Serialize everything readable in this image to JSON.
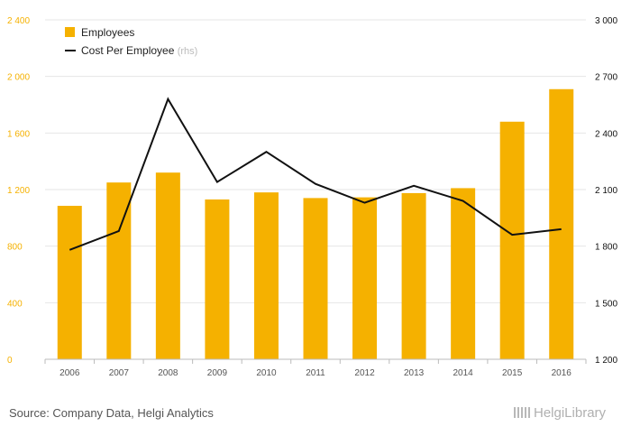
{
  "chart_data": {
    "type": "bar",
    "categories": [
      "2006",
      "2007",
      "2008",
      "2009",
      "2010",
      "2011",
      "2012",
      "2013",
      "2014",
      "2015",
      "2016"
    ],
    "series": [
      {
        "name": "Employees",
        "type": "bar",
        "axis": "left",
        "color": "#f5b100",
        "values": [
          1085,
          1250,
          1320,
          1130,
          1180,
          1140,
          1145,
          1175,
          1210,
          1680,
          1910
        ]
      },
      {
        "name": "Cost Per Employee",
        "type": "line",
        "axis": "right",
        "color": "#111111",
        "values": [
          1780,
          1880,
          2580,
          2140,
          2300,
          2130,
          2030,
          2120,
          2040,
          1860,
          1890
        ]
      }
    ],
    "y_left": {
      "lim": [
        0,
        2400
      ],
      "ticks": [
        0,
        400,
        800,
        1200,
        1600,
        2000,
        2400
      ],
      "tick_labels": [
        "0",
        "400",
        "800",
        "1 200",
        "1 600",
        "2 000",
        "2 400"
      ],
      "color": "#f5b100"
    },
    "y_right": {
      "lim": [
        1200,
        3000
      ],
      "ticks": [
        1200,
        1500,
        1800,
        2100,
        2400,
        2700,
        3000
      ],
      "tick_labels": [
        "1 200",
        "1 500",
        "1 800",
        "2 100",
        "2 400",
        "2 700",
        "3 000"
      ],
      "color": "#111111"
    },
    "legend": [
      {
        "label": "Employees",
        "marker": "square",
        "suffix": ""
      },
      {
        "label": "Cost Per Employee",
        "marker": "line",
        "suffix": "(rhs)"
      }
    ],
    "legend_position": "top-left",
    "grid": true
  },
  "footer": {
    "source": "Source: Company Data, Helgi Analytics",
    "brand": "HelgiLibrary"
  }
}
